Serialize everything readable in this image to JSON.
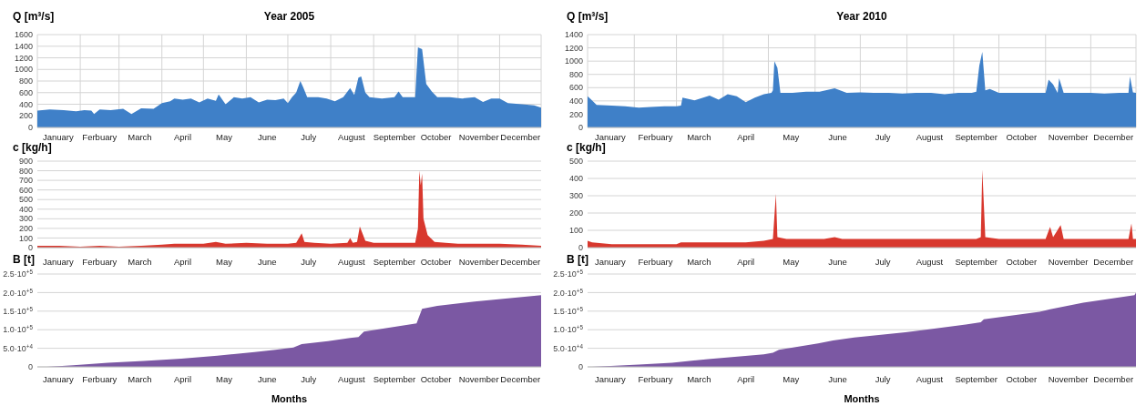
{
  "chart_data": [
    {
      "type": "area",
      "title": "Year 2005",
      "ylabel": "Q [m³/s]",
      "xlim": [
        "--01-01",
        "--12-31"
      ],
      "ylim": [
        0,
        1600
      ],
      "yticks": [
        0,
        200,
        400,
        600,
        800,
        1000,
        1200,
        1400,
        1600
      ],
      "grid": true,
      "xticks": [
        {
          "value": "--01-16",
          "label": "January"
        },
        {
          "value": "--02-15",
          "label": "Ferbuary"
        },
        {
          "value": "--03-16",
          "label": "March"
        },
        {
          "value": "--04-16",
          "label": "April"
        },
        {
          "value": "--05-16",
          "label": "May"
        },
        {
          "value": "--06-16",
          "label": "June"
        },
        {
          "value": "--07-16",
          "label": "July"
        },
        {
          "value": "--08-16",
          "label": "August"
        },
        {
          "value": "--09-16",
          "label": "September"
        },
        {
          "value": "--10-16",
          "label": "October"
        },
        {
          "value": "--11-16",
          "label": "November"
        },
        {
          "value": "--12-16",
          "label": "December"
        },
        {
          "value": "--02-01",
          "label": null
        },
        {
          "value": "--03-01",
          "label": null
        },
        {
          "value": "--04-01",
          "label": null
        },
        {
          "value": "--05-01",
          "label": null
        },
        {
          "value": "--06-01",
          "label": null
        },
        {
          "value": "--07-01",
          "label": null
        },
        {
          "value": "--08-01",
          "label": null
        },
        {
          "value": "--09-01",
          "label": null
        },
        {
          "value": "--10-01",
          "label": null
        },
        {
          "value": "--11-01",
          "label": null
        },
        {
          "value": "--12-01",
          "label": null
        }
      ],
      "series": [
        {
          "color": "#3f80c8",
          "x": [
            "--01-01",
            "--01-10",
            "--01-20",
            "--01-29",
            "--02-04",
            "--02-09",
            "--02-11",
            "--02-15",
            "--02-23",
            "--03-04",
            "--03-10",
            "--03-17",
            "--03-26",
            "--04-01",
            "--04-07",
            "--04-10",
            "--04-16",
            "--04-22",
            "--04-28",
            "--05-04",
            "--05-10",
            "--05-12",
            "--05-17",
            "--05-23",
            "--05-29",
            "--06-04",
            "--06-10",
            "--06-16",
            "--06-22",
            "--06-28",
            "--07-01",
            "--07-04",
            "--07-07",
            "--07-10",
            "--07-12",
            "--07-15",
            "--07-23",
            "--07-29",
            "--08-04",
            "--08-10",
            "--08-15",
            "--08-18",
            "--08-21",
            "--08-23",
            "--08-26",
            "--08-29",
            "--09-07",
            "--09-16",
            "--09-19",
            "--09-22",
            "--10-01",
            "--10-03",
            "--10-06",
            "--10-09",
            "--10-13",
            "--10-17",
            "--10-26",
            "--11-04",
            "--11-13",
            "--11-19",
            "--11-25",
            "--12-01",
            "--12-07",
            "--12-17",
            "--12-26",
            "--12-31"
          ],
          "values": [
            290,
            310,
            300,
            280,
            300,
            290,
            230,
            310,
            300,
            320,
            230,
            330,
            320,
            420,
            450,
            500,
            480,
            500,
            430,
            500,
            460,
            570,
            400,
            520,
            500,
            520,
            430,
            480,
            470,
            500,
            420,
            520,
            600,
            800,
            700,
            520,
            520,
            500,
            450,
            520,
            680,
            560,
            860,
            880,
            600,
            520,
            500,
            520,
            620,
            520,
            520,
            1380,
            1350,
            750,
            620,
            520,
            520,
            500,
            520,
            440,
            500,
            500,
            420,
            400,
            380,
            340
          ]
        }
      ]
    },
    {
      "type": "area",
      "title": "Year 2010",
      "ylabel": "Q [m³/s]",
      "xlim": [
        "--01-01",
        "--12-31"
      ],
      "ylim": [
        0,
        1400
      ],
      "yticks": [
        0,
        200,
        400,
        600,
        800,
        1000,
        1200,
        1400
      ],
      "grid": true,
      "xticks": [
        {
          "value": "--01-16",
          "label": "January"
        },
        {
          "value": "--02-15",
          "label": "Ferbuary"
        },
        {
          "value": "--03-16",
          "label": "March"
        },
        {
          "value": "--04-16",
          "label": "April"
        },
        {
          "value": "--05-16",
          "label": "May"
        },
        {
          "value": "--06-16",
          "label": "June"
        },
        {
          "value": "--07-16",
          "label": "July"
        },
        {
          "value": "--08-16",
          "label": "August"
        },
        {
          "value": "--09-16",
          "label": "September"
        },
        {
          "value": "--10-16",
          "label": "October"
        },
        {
          "value": "--11-16",
          "label": "November"
        },
        {
          "value": "--12-16",
          "label": "December"
        },
        {
          "value": "--02-01",
          "label": null
        },
        {
          "value": "--03-01",
          "label": null
        },
        {
          "value": "--04-01",
          "label": null
        },
        {
          "value": "--05-01",
          "label": null
        },
        {
          "value": "--06-01",
          "label": null
        },
        {
          "value": "--07-01",
          "label": null
        },
        {
          "value": "--08-01",
          "label": null
        },
        {
          "value": "--09-01",
          "label": null
        },
        {
          "value": "--10-01",
          "label": null
        },
        {
          "value": "--11-01",
          "label": null
        },
        {
          "value": "--12-01",
          "label": null
        }
      ],
      "series": [
        {
          "color": "#3f80c8",
          "x": [
            "--01-01",
            "--01-03",
            "--01-07",
            "--01-17",
            "--01-26",
            "--02-04",
            "--02-12",
            "--02-21",
            "--03-01",
            "--03-04",
            "--03-05",
            "--03-13",
            "--03-23",
            "--03-29",
            "--04-04",
            "--04-10",
            "--04-16",
            "--04-22",
            "--04-28",
            "--05-03",
            "--05-04",
            "--05-05",
            "--05-07",
            "--05-09",
            "--05-17",
            "--05-26",
            "--06-04",
            "--06-14",
            "--06-22",
            "--07-01",
            "--07-10",
            "--07-20",
            "--07-29",
            "--08-07",
            "--08-17",
            "--08-26",
            "--09-04",
            "--09-13",
            "--09-16",
            "--09-18",
            "--09-20",
            "--09-22",
            "--09-25",
            "--10-01",
            "--10-10",
            "--10-20",
            "--10-29",
            "--11-01",
            "--11-03",
            "--11-06",
            "--11-09",
            "--11-10",
            "--11-13",
            "--11-22",
            "--12-01",
            "--12-10",
            "--12-20",
            "--12-26",
            "--12-27",
            "--12-29",
            "--12-31"
          ],
          "values": [
            470,
            430,
            340,
            330,
            320,
            300,
            310,
            320,
            320,
            330,
            450,
            410,
            480,
            420,
            500,
            470,
            380,
            450,
            500,
            520,
            560,
            1000,
            900,
            520,
            520,
            540,
            540,
            590,
            520,
            530,
            520,
            520,
            510,
            520,
            520,
            500,
            520,
            520,
            540,
            930,
            1140,
            560,
            580,
            520,
            520,
            520,
            520,
            520,
            720,
            650,
            520,
            740,
            520,
            520,
            520,
            510,
            520,
            520,
            770,
            530,
            520
          ]
        }
      ]
    },
    {
      "type": "area",
      "ylabel": "c [kg/h]",
      "xlim": [
        "--01-01",
        "--12-31"
      ],
      "ylim": [
        0,
        900
      ],
      "yticks": [
        0,
        100,
        200,
        300,
        400,
        500,
        600,
        700,
        800,
        900
      ],
      "grid": "y",
      "xticks": [
        {
          "value": "--01-16",
          "label": "January"
        },
        {
          "value": "--02-15",
          "label": "Ferbuary"
        },
        {
          "value": "--03-16",
          "label": "March"
        },
        {
          "value": "--04-16",
          "label": "April"
        },
        {
          "value": "--05-16",
          "label": "May"
        },
        {
          "value": "--06-16",
          "label": "June"
        },
        {
          "value": "--07-16",
          "label": "July"
        },
        {
          "value": "--08-16",
          "label": "August"
        },
        {
          "value": "--09-16",
          "label": "September"
        },
        {
          "value": "--10-16",
          "label": "October"
        },
        {
          "value": "--11-16",
          "label": "November"
        },
        {
          "value": "--12-16",
          "label": "December"
        }
      ],
      "series": [
        {
          "color": "#d8382e",
          "x": [
            "--01-01",
            "--01-17",
            "--02-01",
            "--02-15",
            "--03-01",
            "--03-17",
            "--04-01",
            "--04-10",
            "--04-19",
            "--05-01",
            "--05-10",
            "--05-17",
            "--06-01",
            "--06-16",
            "--07-01",
            "--07-07",
            "--07-11",
            "--07-13",
            "--07-20",
            "--08-01",
            "--08-13",
            "--08-15",
            "--08-17",
            "--08-20",
            "--08-22",
            "--08-26",
            "--09-01",
            "--09-16",
            "--10-01",
            "--10-03",
            "--10-04",
            "--10-05",
            "--10-06",
            "--10-07",
            "--10-10",
            "--10-15",
            "--10-23",
            "--11-01",
            "--11-16",
            "--12-01",
            "--12-17",
            "--12-31"
          ],
          "values": [
            20,
            20,
            10,
            20,
            10,
            20,
            30,
            40,
            40,
            40,
            60,
            40,
            50,
            40,
            40,
            50,
            150,
            60,
            50,
            40,
            50,
            100,
            50,
            60,
            220,
            70,
            50,
            50,
            50,
            200,
            800,
            650,
            770,
            300,
            130,
            60,
            50,
            40,
            40,
            40,
            30,
            20
          ]
        }
      ]
    },
    {
      "type": "area",
      "ylabel": "c [kg/h]",
      "xlim": [
        "--01-01",
        "--12-31"
      ],
      "ylim": [
        0,
        500
      ],
      "yticks": [
        0,
        100,
        200,
        300,
        400,
        500
      ],
      "grid": "y",
      "xticks": [
        {
          "value": "--01-16",
          "label": "January"
        },
        {
          "value": "--02-15",
          "label": "Ferbuary"
        },
        {
          "value": "--03-16",
          "label": "March"
        },
        {
          "value": "--04-16",
          "label": "April"
        },
        {
          "value": "--05-16",
          "label": "May"
        },
        {
          "value": "--06-16",
          "label": "June"
        },
        {
          "value": "--07-16",
          "label": "July"
        },
        {
          "value": "--08-16",
          "label": "August"
        },
        {
          "value": "--09-16",
          "label": "September"
        },
        {
          "value": "--10-16",
          "label": "October"
        },
        {
          "value": "--11-16",
          "label": "November"
        },
        {
          "value": "--12-16",
          "label": "December"
        }
      ],
      "series": [
        {
          "color": "#d8382e",
          "x": [
            "--01-01",
            "--01-04",
            "--01-17",
            "--02-01",
            "--02-15",
            "--03-01",
            "--03-04",
            "--03-17",
            "--04-01",
            "--04-16",
            "--04-28",
            "--05-04",
            "--05-06",
            "--05-07",
            "--05-13",
            "--05-26",
            "--06-07",
            "--06-14",
            "--06-19",
            "--07-01",
            "--07-17",
            "--08-01",
            "--08-17",
            "--09-01",
            "--09-16",
            "--09-19",
            "--09-20",
            "--09-22",
            "--10-01",
            "--10-17",
            "--11-01",
            "--11-04",
            "--11-06",
            "--11-11",
            "--11-13",
            "--12-01",
            "--12-17",
            "--12-26",
            "--12-28",
            "--12-29",
            "--12-31"
          ],
          "values": [
            40,
            30,
            20,
            20,
            20,
            20,
            30,
            30,
            30,
            30,
            40,
            50,
            310,
            60,
            50,
            50,
            50,
            60,
            50,
            50,
            50,
            50,
            50,
            50,
            50,
            60,
            450,
            60,
            50,
            50,
            50,
            120,
            60,
            130,
            50,
            50,
            50,
            50,
            140,
            50,
            50
          ]
        }
      ]
    },
    {
      "type": "area",
      "ylabel": "B [t]",
      "xlabel": "Months",
      "xlim": [
        "--01-01",
        "--12-31"
      ],
      "ylim": [
        0,
        250000
      ],
      "grid": "y",
      "yticks": [
        0,
        {
          "value": 50000,
          "label": "5.0·10$^{+4}$"
        },
        {
          "value": 100000,
          "label": "1.0·10$^{+5}$"
        },
        {
          "value": 150000,
          "label": "1.5·10$^{+5}$"
        },
        {
          "value": 200000,
          "label": "2.0·10$^{+5}$"
        },
        {
          "value": 250000,
          "label": "2.5·10$^{+5}$"
        }
      ],
      "xticks": [
        {
          "value": "--01-16",
          "label": "January"
        },
        {
          "value": "--02-15",
          "label": "Ferbuary"
        },
        {
          "value": "--03-16",
          "label": "March"
        },
        {
          "value": "--04-16",
          "label": "April"
        },
        {
          "value": "--05-16",
          "label": "May"
        },
        {
          "value": "--06-16",
          "label": "June"
        },
        {
          "value": "--07-16",
          "label": "July"
        },
        {
          "value": "--08-16",
          "label": "August"
        },
        {
          "value": "--09-16",
          "label": "September"
        },
        {
          "value": "--10-16",
          "label": "October"
        },
        {
          "value": "--11-16",
          "label": "November"
        },
        {
          "value": "--12-16",
          "label": "December"
        }
      ],
      "series": [
        {
          "color": "#7b58a3",
          "x": [
            "--01-08",
            "--01-27",
            "--02-21",
            "--03-19",
            "--04-15",
            "--05-11",
            "--06-07",
            "--06-22",
            "--07-05",
            "--07-11",
            "--07-30",
            "--08-15",
            "--08-21",
            "--08-25",
            "--10-02",
            "--10-06",
            "--10-17",
            "--11-13",
            "--12-31"
          ],
          "values": [
            0,
            4000,
            11000,
            16000,
            22000,
            30000,
            40000,
            46000,
            52000,
            61000,
            69000,
            78000,
            80000,
            95000,
            117000,
            156000,
            164000,
            176000,
            193000
          ]
        }
      ]
    },
    {
      "type": "area",
      "ylabel": "B [t]",
      "xlabel": "Months",
      "xlim": [
        "--01-01",
        "--12-31"
      ],
      "ylim": [
        0,
        250000
      ],
      "grid": "y",
      "yticks": [
        0,
        {
          "value": 50000,
          "label": "5.0·10$^{+4}$"
        },
        {
          "value": 100000,
          "label": "1.0·10$^{+5}$"
        },
        {
          "value": 150000,
          "label": "1.5·10$^{+5}$"
        },
        {
          "value": 200000,
          "label": "2.0·10$^{+5}$"
        },
        {
          "value": 250000,
          "label": "2.5·10$^{+5}$"
        }
      ],
      "xticks": [
        {
          "value": "--01-16",
          "label": "January"
        },
        {
          "value": "--02-15",
          "label": "Ferbuary"
        },
        {
          "value": "--03-16",
          "label": "March"
        },
        {
          "value": "--04-16",
          "label": "April"
        },
        {
          "value": "--05-16",
          "label": "May"
        },
        {
          "value": "--06-16",
          "label": "June"
        },
        {
          "value": "--07-16",
          "label": "July"
        },
        {
          "value": "--08-16",
          "label": "August"
        },
        {
          "value": "--09-16",
          "label": "September"
        },
        {
          "value": "--10-16",
          "label": "October"
        },
        {
          "value": "--11-16",
          "label": "November"
        },
        {
          "value": "--12-16",
          "label": "December"
        }
      ],
      "series": [
        {
          "color": "#7b58a3",
          "x": [
            "--01-04",
            "--02-04",
            "--02-26",
            "--03-22",
            "--04-28",
            "--05-04",
            "--05-08",
            "--06-03",
            "--06-13",
            "--06-27",
            "--07-31",
            "--09-09",
            "--09-19",
            "--09-21",
            "--10-28",
            "--11-04",
            "--11-26",
            "--12-30",
            "--12-31"
          ],
          "values": [
            0,
            6000,
            11000,
            21000,
            34000,
            38000,
            46000,
            63000,
            71000,
            79000,
            93000,
            114000,
            120000,
            128000,
            148000,
            155000,
            173000,
            193000,
            200000
          ]
        }
      ]
    }
  ]
}
